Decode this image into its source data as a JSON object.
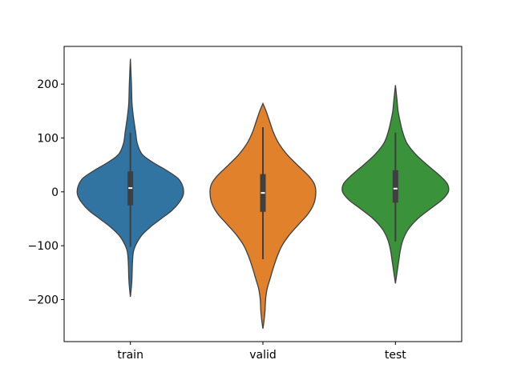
{
  "chart_data": {
    "type": "violin",
    "categories": [
      "train",
      "valid",
      "test"
    ],
    "colors": [
      "#3274a1",
      "#e1812c",
      "#3a923a"
    ],
    "ylim": [
      -278,
      270
    ],
    "yticks": [
      -200,
      -100,
      0,
      100,
      200
    ],
    "ytick_labels": [
      "−200",
      "−100",
      "0",
      "100",
      "200"
    ],
    "xlabel": "",
    "ylabel": "",
    "title": "",
    "grid": false,
    "series": [
      {
        "category": "train",
        "min": -195,
        "max": 247,
        "q1": -25,
        "median": 7,
        "q3": 38,
        "whisker_low": -102,
        "whisker_high": 110,
        "density": [
          [
            -195,
            0.0
          ],
          [
            -175,
            0.02
          ],
          [
            -160,
            0.03
          ],
          [
            -130,
            0.04
          ],
          [
            -110,
            0.06
          ],
          [
            -95,
            0.12
          ],
          [
            -80,
            0.22
          ],
          [
            -65,
            0.38
          ],
          [
            -50,
            0.58
          ],
          [
            -35,
            0.78
          ],
          [
            -20,
            0.92
          ],
          [
            -5,
            1.0
          ],
          [
            10,
            0.99
          ],
          [
            25,
            0.9
          ],
          [
            40,
            0.68
          ],
          [
            55,
            0.42
          ],
          [
            70,
            0.22
          ],
          [
            90,
            0.13
          ],
          [
            110,
            0.1
          ],
          [
            130,
            0.07
          ],
          [
            145,
            0.05
          ],
          [
            165,
            0.03
          ],
          [
            200,
            0.02
          ],
          [
            247,
            0.0
          ]
        ]
      },
      {
        "category": "valid",
        "min": -254,
        "max": 164,
        "q1": -37,
        "median": -2,
        "q3": 33,
        "whisker_low": -125,
        "whisker_high": 120,
        "density": [
          [
            -254,
            0.0
          ],
          [
            -240,
            0.02
          ],
          [
            -220,
            0.04
          ],
          [
            -200,
            0.05
          ],
          [
            -180,
            0.08
          ],
          [
            -160,
            0.14
          ],
          [
            -140,
            0.2
          ],
          [
            -120,
            0.27
          ],
          [
            -100,
            0.36
          ],
          [
            -80,
            0.5
          ],
          [
            -60,
            0.68
          ],
          [
            -40,
            0.86
          ],
          [
            -20,
            0.97
          ],
          [
            0,
            1.0
          ],
          [
            15,
            0.97
          ],
          [
            30,
            0.86
          ],
          [
            50,
            0.65
          ],
          [
            70,
            0.45
          ],
          [
            90,
            0.3
          ],
          [
            110,
            0.2
          ],
          [
            130,
            0.13
          ],
          [
            150,
            0.06
          ],
          [
            164,
            0.0
          ]
        ]
      },
      {
        "category": "test",
        "min": -170,
        "max": 198,
        "q1": -20,
        "median": 6,
        "q3": 40,
        "whisker_low": -92,
        "whisker_high": 110,
        "density": [
          [
            -170,
            0.0
          ],
          [
            -150,
            0.03
          ],
          [
            -130,
            0.06
          ],
          [
            -110,
            0.09
          ],
          [
            -90,
            0.14
          ],
          [
            -70,
            0.24
          ],
          [
            -50,
            0.42
          ],
          [
            -30,
            0.68
          ],
          [
            -15,
            0.88
          ],
          [
            0,
            1.0
          ],
          [
            15,
            0.98
          ],
          [
            30,
            0.84
          ],
          [
            50,
            0.6
          ],
          [
            70,
            0.38
          ],
          [
            90,
            0.22
          ],
          [
            110,
            0.14
          ],
          [
            130,
            0.09
          ],
          [
            150,
            0.05
          ],
          [
            170,
            0.03
          ],
          [
            198,
            0.0
          ]
        ]
      }
    ]
  }
}
